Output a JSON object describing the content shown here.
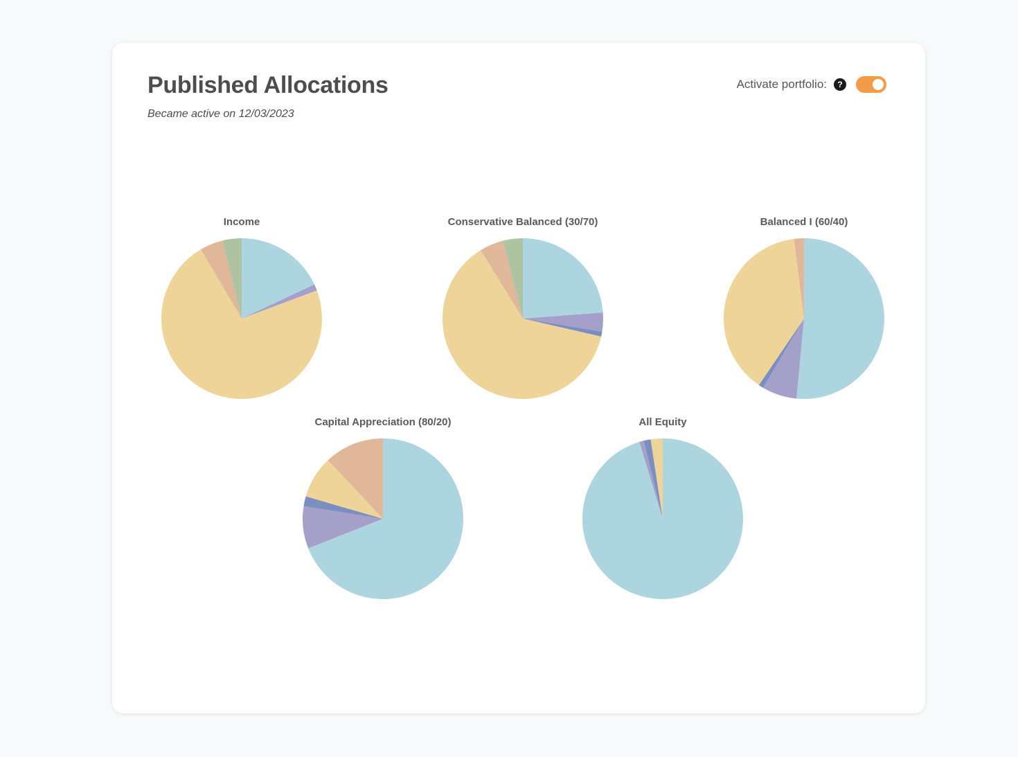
{
  "header": {
    "title": "Published Allocations",
    "subtitle": "Became active on 12/03/2023",
    "activate_label": "Activate portfolio:",
    "help_glyph": "?",
    "toggle_on": true,
    "help_icon": "question-circle-icon",
    "toggle_color": "#f29c48"
  },
  "colors": {
    "blue": "#acd5e0",
    "lavender": "#a4a0c9",
    "slate": "#7a8fbf",
    "yellow": "#efd49a",
    "peach": "#e0b799",
    "sage": "#aec3a1"
  },
  "chart_data": [
    {
      "type": "pie",
      "title": "Income",
      "slices": [
        {
          "color": "blue",
          "value": 18.0
        },
        {
          "color": "lavender",
          "value": 1.3
        },
        {
          "color": "yellow",
          "value": 72.2
        },
        {
          "color": "peach",
          "value": 4.6
        },
        {
          "color": "sage",
          "value": 3.9
        }
      ]
    },
    {
      "type": "pie",
      "title": "Conservative Balanced (30/70)",
      "slices": [
        {
          "color": "blue",
          "value": 23.8
        },
        {
          "color": "lavender",
          "value": 3.8
        },
        {
          "color": "slate",
          "value": 1.0
        },
        {
          "color": "yellow",
          "value": 62.6
        },
        {
          "color": "peach",
          "value": 4.8
        },
        {
          "color": "sage",
          "value": 4.0
        }
      ]
    },
    {
      "type": "pie",
      "title": "Balanced I (60/40)",
      "slices": [
        {
          "color": "blue",
          "value": 51.5
        },
        {
          "color": "lavender",
          "value": 7.0
        },
        {
          "color": "slate",
          "value": 1.0
        },
        {
          "color": "yellow",
          "value": 38.5
        },
        {
          "color": "peach",
          "value": 2.0
        }
      ]
    },
    {
      "type": "pie",
      "title": "Capital Appreciation (80/20)",
      "slices": [
        {
          "color": "blue",
          "value": 69.0
        },
        {
          "color": "lavender",
          "value": 8.5
        },
        {
          "color": "slate",
          "value": 2.0
        },
        {
          "color": "yellow",
          "value": 8.5
        },
        {
          "color": "peach",
          "value": 12.0
        }
      ]
    },
    {
      "type": "pie",
      "title": "All Equity",
      "slices": [
        {
          "color": "blue",
          "value": 95.3
        },
        {
          "color": "lavender",
          "value": 0.9
        },
        {
          "color": "slate",
          "value": 1.4
        },
        {
          "color": "yellow",
          "value": 2.4
        }
      ]
    }
  ]
}
